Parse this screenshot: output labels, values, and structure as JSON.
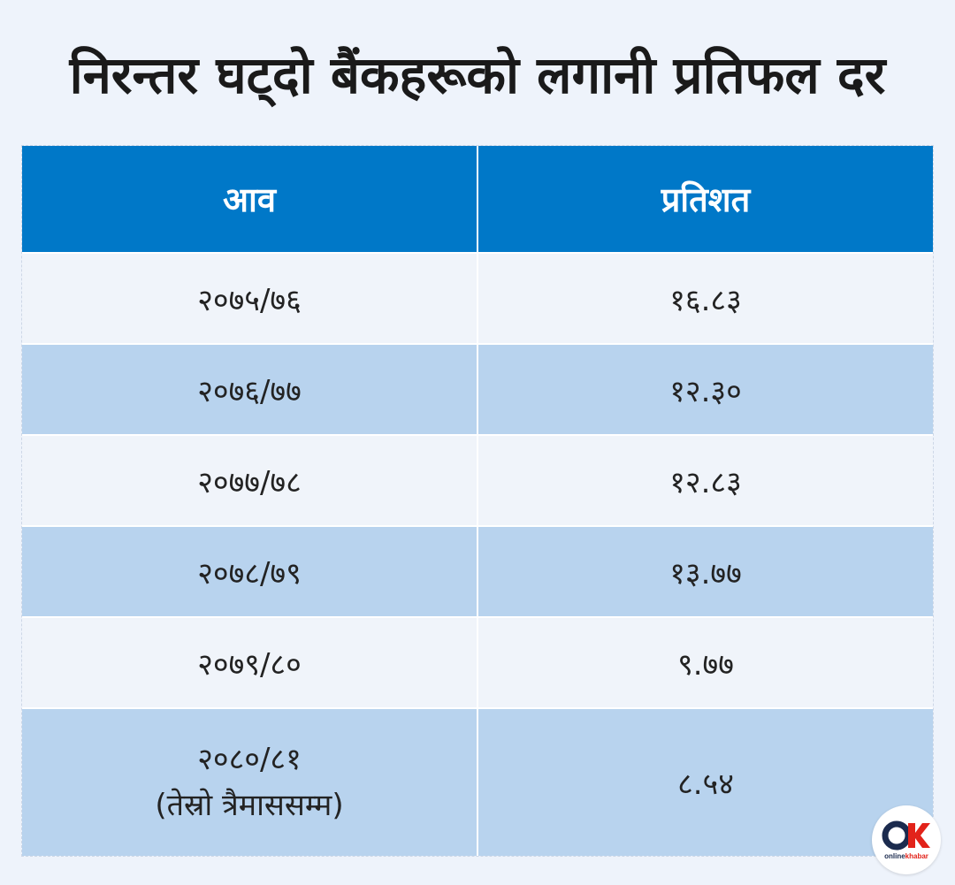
{
  "title": "निरन्तर घट्दो बैंकहरूको लगानी प्रतिफल दर",
  "chart_data": {
    "type": "table",
    "columns": [
      "आव",
      "प्रतिशत"
    ],
    "rows": [
      {
        "year": "२०७५/७६",
        "value": "१६.८३"
      },
      {
        "year": "२०७६/७७",
        "value": "१२.३०"
      },
      {
        "year": "२०७७/७८",
        "value": "१२.८३"
      },
      {
        "year": "२०७८/७९",
        "value": "१३.७७"
      },
      {
        "year": "२०७९/८०",
        "value": "९.७७"
      },
      {
        "year": "२०८०/८१",
        "note": "(तेस्रो त्रैमाससम्म)",
        "value": "८.५४"
      }
    ]
  },
  "logo": {
    "mark": "OK",
    "text_online": "online",
    "text_khabar": "khabar",
    "icon": "onlinekhabar-logo-icon",
    "colors": {
      "o": "#1b2b4e",
      "k": "#e2231a",
      "text": "#1b2b4e"
    }
  },
  "colors": {
    "header": "#0078c8",
    "row_light": "#f0f4fa",
    "row_shade": "#b8d3ee",
    "background": "#eef3fb"
  }
}
